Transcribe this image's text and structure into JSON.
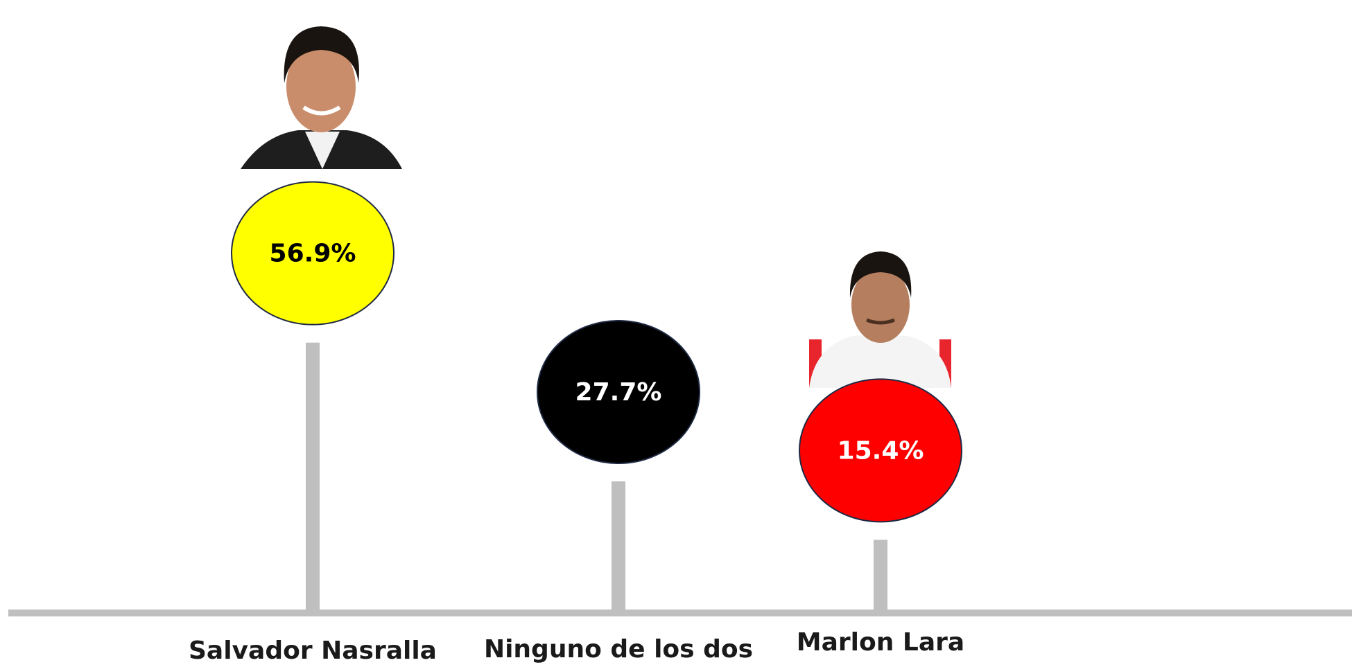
{
  "chart_data": {
    "type": "lollipop",
    "categories": [
      "Salvador Nasralla",
      "Ninguno de los dos",
      "Marlon Lara"
    ],
    "values": [
      56.9,
      27.7,
      15.4
    ],
    "value_labels": [
      "56.9%",
      "27.7%",
      "15.4%"
    ],
    "colors": [
      "#ffff00",
      "#000000",
      "#ff0000"
    ],
    "text_colors": [
      "#000000",
      "#ffffff",
      "#ffffff"
    ],
    "stem_color": "#bfbfbf"
  }
}
